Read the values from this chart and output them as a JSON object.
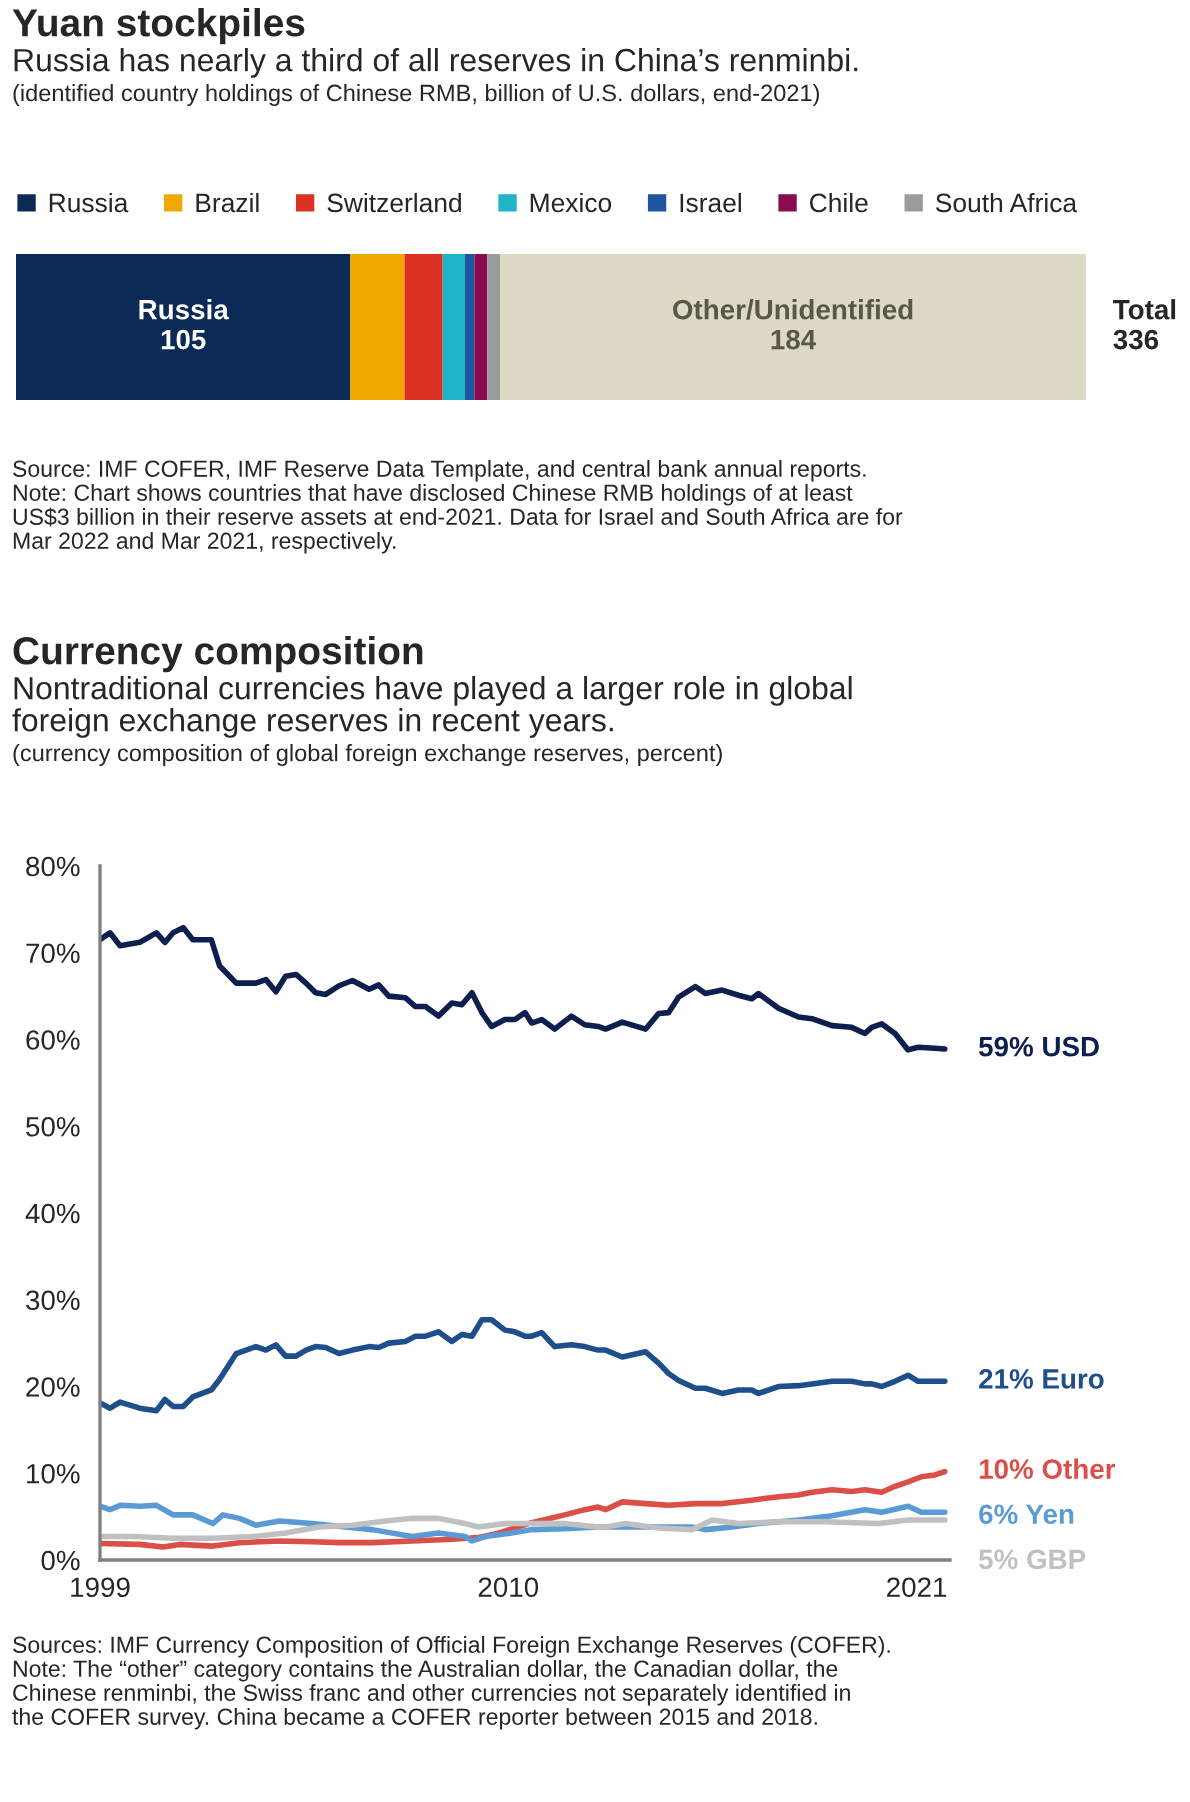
{
  "chart_data": [
    {
      "type": "bar",
      "orientation": "horizontal",
      "stacked": true,
      "title": "Yuan stockpiles",
      "subtitle": "Russia has nearly a third of all reserves in China’s renminbi.",
      "annotations": [
        "(identified country holdings of Chinese RMB, billion of U.S. dollars, end-2021)",
        "Source: IMF COFER, IMF Reserve Data Template, and central bank annual reports.\nNote: Chart shows countries that have disclosed Chinese RMB holdings of at least\nUS$3 billion in their reserve assets at end-2021. Data for Israel and South Africa are for\nMar 2022 and Mar 2021, respectively."
      ],
      "categories": [
        null
      ],
      "legend": "top",
      "totals": [
        "Total\n336"
      ],
      "series": [
        {
          "name": "Russia",
          "color": "#0b2a55",
          "values": [
            105
          ],
          "value_labels": [
            "Russia\n105"
          ]
        },
        {
          "name": "Brazil",
          "color": "#f0a800",
          "values": [
            17
          ]
        },
        {
          "name": "Switzerland",
          "color": "#dc3223",
          "values": [
            12
          ]
        },
        {
          "name": "Mexico",
          "color": "#1fb4c8",
          "values": [
            7
          ]
        },
        {
          "name": "Israel",
          "color": "#1d55a0",
          "values": [
            3
          ]
        },
        {
          "name": "Chile",
          "color": "#8a0b4e",
          "values": [
            4
          ]
        },
        {
          "name": "South Africa",
          "color": "#9b9b9b",
          "values": [
            4
          ]
        },
        {
          "color": "#ddd9c4",
          "values": [
            184
          ],
          "value_labels": [
            "Other/Unidentified\n184"
          ]
        }
      ]
    },
    {
      "type": "line",
      "title": "Currency composition",
      "subtitle": "Nontraditional currencies have played a larger role in global\nforeign exchange reserves in recent years.",
      "annotations": [
        "(currency composition of global foreign exchange reserves, percent)",
        "Sources: IMF Currency Composition of Official Foreign Exchange Reserves (COFER).\nNote: The “other” category contains the Australian dollar, the Canadian dollar, the\nChinese renminbi, the Swiss franc and other currencies not separately identified in\nthe COFER survey. China became a COFER reporter between 2015 and 2018."
      ],
      "xlim": [
        1999,
        2021.9
      ],
      "xticks": [
        1999,
        2010,
        2021
      ],
      "ylim": [
        0,
        80
      ],
      "yticks": [
        {
          "value": 0,
          "label": "0%"
        },
        {
          "value": 10,
          "label": "10%"
        },
        {
          "value": 20,
          "label": "20%"
        },
        {
          "value": 30,
          "label": "30%"
        },
        {
          "value": 40,
          "label": "40%"
        },
        {
          "value": 50,
          "label": "50%"
        },
        {
          "value": 60,
          "label": "60%"
        },
        {
          "value": 70,
          "label": "70%"
        },
        {
          "value": 80,
          "label": "80%"
        }
      ],
      "grid": false,
      "legend": false,
      "marker": "none",
      "line_style": "solid",
      "series": [
        {
          "name": "59% USD",
          "color": "#0d1f4f",
          "x": [
            1999.0,
            1999.27,
            1999.54,
            2000.07,
            2000.52,
            2000.75,
            2000.97,
            2001.24,
            2001.5,
            2002.0,
            2002.22,
            2002.67,
            2003.2,
            2003.47,
            2003.74,
            2004.0,
            2004.28,
            2004.55,
            2004.81,
            2005.08,
            2005.44,
            2005.8,
            2006.25,
            2006.51,
            2006.78,
            2007.23,
            2007.5,
            2007.77,
            2008.12,
            2008.48,
            2008.75,
            2009.02,
            2009.29,
            2009.55,
            2009.91,
            2010.18,
            2010.45,
            2010.63,
            2010.9,
            2011.25,
            2011.7,
            2012.06,
            2012.42,
            2012.62,
            2013.07,
            2013.7,
            2014.05,
            2014.32,
            2014.59,
            2015.04,
            2015.31,
            2015.76,
            2016.2,
            2016.56,
            2016.74,
            2017.28,
            2017.82,
            2018.18,
            2018.72,
            2019.25,
            2019.61,
            2019.79,
            2020.06,
            2020.42,
            2020.77,
            2021.04,
            2021.49,
            2021.76
          ],
          "values": [
            71.5,
            72.3,
            70.8,
            71.2,
            72.3,
            71.2,
            72.3,
            72.9,
            71.5,
            71.5,
            68.5,
            66.5,
            66.5,
            66.9,
            65.5,
            67.3,
            67.5,
            66.5,
            65.4,
            65.2,
            66.2,
            66.8,
            65.8,
            66.3,
            65.0,
            64.8,
            63.8,
            63.8,
            62.7,
            64.2,
            64.0,
            65.4,
            63.1,
            61.5,
            62.3,
            62.3,
            63.1,
            61.9,
            62.3,
            61.2,
            62.7,
            61.7,
            61.5,
            61.2,
            62.0,
            61.2,
            63.0,
            63.1,
            64.9,
            66.1,
            65.3,
            65.7,
            65.1,
            64.7,
            65.3,
            63.6,
            62.6,
            62.4,
            61.6,
            61.4,
            60.7,
            61.4,
            61.8,
            60.7,
            58.8,
            59.1,
            59.0,
            58.9
          ]
        },
        {
          "name": "21% Euro",
          "color": "#1f4e8c",
          "x": [
            1999.0,
            1999.27,
            1999.54,
            2000.07,
            2000.52,
            2000.75,
            2000.97,
            2001.24,
            2001.5,
            2002.0,
            2002.22,
            2002.67,
            2003.2,
            2003.47,
            2003.74,
            2004.0,
            2004.28,
            2004.55,
            2004.81,
            2005.08,
            2005.44,
            2005.8,
            2006.25,
            2006.51,
            2006.78,
            2007.23,
            2007.5,
            2007.77,
            2008.12,
            2008.48,
            2008.75,
            2009.02,
            2009.29,
            2009.55,
            2009.91,
            2010.18,
            2010.45,
            2010.63,
            2010.9,
            2011.25,
            2011.7,
            2012.06,
            2012.42,
            2012.62,
            2013.07,
            2013.7,
            2014.05,
            2014.32,
            2014.59,
            2015.04,
            2015.31,
            2015.76,
            2016.2,
            2016.56,
            2016.74,
            2017.28,
            2017.82,
            2018.18,
            2018.72,
            2019.25,
            2019.61,
            2019.79,
            2020.06,
            2020.42,
            2020.77,
            2021.04,
            2021.49,
            2021.76
          ],
          "values": [
            18.1,
            17.5,
            18.2,
            17.5,
            17.2,
            18.5,
            17.7,
            17.7,
            18.8,
            19.6,
            20.8,
            23.8,
            24.6,
            24.2,
            24.8,
            23.5,
            23.5,
            24.2,
            24.6,
            24.5,
            23.8,
            24.2,
            24.6,
            24.5,
            25.0,
            25.2,
            25.8,
            25.8,
            26.3,
            25.2,
            26.0,
            25.8,
            27.7,
            27.7,
            26.5,
            26.3,
            25.8,
            25.8,
            26.2,
            24.6,
            24.8,
            24.6,
            24.2,
            24.2,
            23.4,
            24.0,
            22.7,
            21.5,
            20.7,
            19.8,
            19.8,
            19.2,
            19.6,
            19.6,
            19.2,
            20.0,
            20.1,
            20.3,
            20.6,
            20.6,
            20.3,
            20.3,
            20.0,
            20.6,
            21.3,
            20.6,
            20.6,
            20.6
          ]
        },
        {
          "name": "10% Other",
          "color": "#dc4f47",
          "x": [
            1999.0,
            2000.07,
            2000.7,
            2001.15,
            2002.04,
            2002.76,
            2003.83,
            2004.72,
            2005.44,
            2006.33,
            2007.41,
            2008.48,
            2009.2,
            2009.73,
            2010.63,
            2011.52,
            2012.06,
            2012.42,
            2012.62,
            2013.07,
            2013.7,
            2014.32,
            2015.04,
            2015.76,
            2016.56,
            2017.28,
            2017.82,
            2018.18,
            2018.72,
            2019.25,
            2019.61,
            2020.06,
            2020.42,
            2020.77,
            2021.13,
            2021.49,
            2021.76
          ],
          "values": [
            1.9,
            1.8,
            1.5,
            1.8,
            1.6,
            2.0,
            2.2,
            2.1,
            2.0,
            2.0,
            2.2,
            2.4,
            2.6,
            3.1,
            4.3,
            5.2,
            5.8,
            6.1,
            5.8,
            6.7,
            6.5,
            6.3,
            6.5,
            6.5,
            6.9,
            7.3,
            7.5,
            7.8,
            8.1,
            7.9,
            8.1,
            7.8,
            8.5,
            9.0,
            9.6,
            9.8,
            10.2
          ]
        },
        {
          "name": "6% Yen",
          "color": "#5b9bd5",
          "x": [
            1999.0,
            1999.27,
            1999.54,
            2000.07,
            2000.52,
            2000.97,
            2001.5,
            2002.04,
            2002.31,
            2002.76,
            2003.2,
            2003.83,
            2004.72,
            2005.62,
            2006.33,
            2007.41,
            2008.12,
            2008.84,
            2009.02,
            2009.38,
            2010.09,
            2010.63,
            2011.52,
            2012.42,
            2012.62,
            2013.7,
            2014.95,
            2015.31,
            2016.03,
            2016.74,
            2017.82,
            2018.72,
            2019.61,
            2020.06,
            2020.77,
            2021.13,
            2021.76
          ],
          "values": [
            6.2,
            5.8,
            6.3,
            6.2,
            6.3,
            5.2,
            5.2,
            4.2,
            5.2,
            4.8,
            4.0,
            4.5,
            4.2,
            3.8,
            3.5,
            2.7,
            3.1,
            2.7,
            2.2,
            2.7,
            3.1,
            3.5,
            3.6,
            3.8,
            3.8,
            3.8,
            3.8,
            3.5,
            3.8,
            4.2,
            4.6,
            5.1,
            5.8,
            5.5,
            6.2,
            5.5,
            5.5
          ]
        },
        {
          "name": "5% GBP",
          "color": "#c0c0c0",
          "x": [
            1999.0,
            1999.89,
            2000.97,
            2002.04,
            2003.11,
            2004.0,
            2004.9,
            2005.8,
            2006.69,
            2007.41,
            2008.12,
            2008.84,
            2009.2,
            2009.91,
            2010.63,
            2011.52,
            2012.42,
            2012.62,
            2013.16,
            2014.05,
            2014.95,
            2015.49,
            2016.2,
            2017.28,
            2018.53,
            2019.97,
            2020.77,
            2021.76
          ],
          "values": [
            2.7,
            2.7,
            2.5,
            2.5,
            2.7,
            3.1,
            3.8,
            4.0,
            4.5,
            4.8,
            4.8,
            4.2,
            3.8,
            4.2,
            4.2,
            4.2,
            3.8,
            3.8,
            4.2,
            3.7,
            3.5,
            4.6,
            4.2,
            4.4,
            4.4,
            4.2,
            4.6,
            4.6
          ]
        }
      ]
    }
  ]
}
